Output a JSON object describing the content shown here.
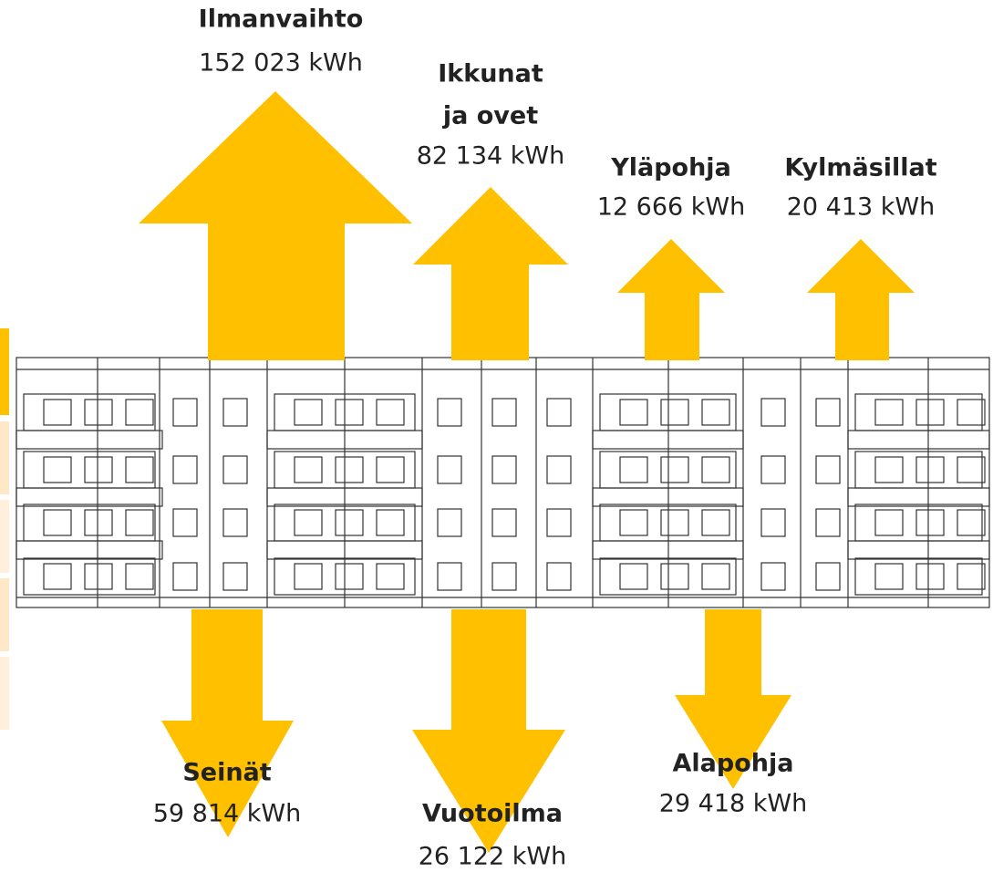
{
  "nodes": [
    {
      "label": [
        "Ilmanvaihto"
      ],
      "value": "152 023 kWh"
    },
    {
      "label": [
        "Ikkunat",
        "ja ovet"
      ],
      "value": "82 134 kWh"
    },
    {
      "label": [
        "Yläpohja"
      ],
      "value": "12 666 kWh"
    },
    {
      "label": [
        "Kylmäsillat"
      ],
      "value": "20 413 kWh"
    },
    {
      "label": [
        "Seinät"
      ],
      "value": "59 814 kWh"
    },
    {
      "label": [
        "Vuotoilma"
      ],
      "value": "26 122 kWh"
    },
    {
      "label": [
        "Alapohja"
      ],
      "value": "29 418 kWh"
    }
  ]
}
